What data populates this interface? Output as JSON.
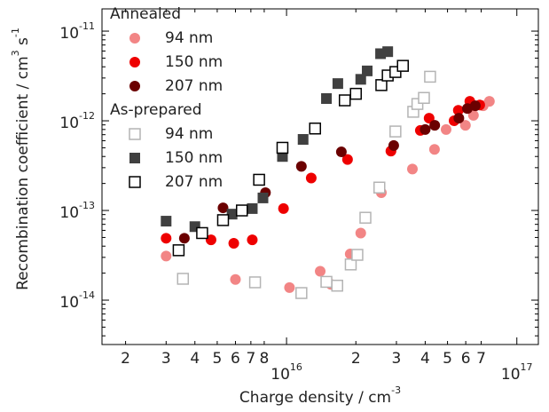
{
  "chart_data": {
    "type": "scatter",
    "xlog": true,
    "ylog": true,
    "xlim": [
      1580000000000000.0,
      1.24e+17
    ],
    "ylim": [
      3.2e-15,
      1.77e-11
    ],
    "xticks": [
      {
        "value": 2000000000000000.0,
        "label": "2"
      },
      {
        "value": 3000000000000000.0,
        "label": "3"
      },
      {
        "value": 4000000000000000.0,
        "label": "4"
      },
      {
        "value": 5000000000000000.0,
        "label": "5"
      },
      {
        "value": 6000000000000000.0,
        "label": "6"
      },
      {
        "value": 7000000000000000.0,
        "label": "7"
      },
      {
        "value": 8000000000000000.0,
        "label": "8"
      },
      {
        "value": 1e+16,
        "label": "10",
        "sup": "16"
      },
      {
        "value": 2e+16,
        "label": "2"
      },
      {
        "value": 3e+16,
        "label": "3"
      },
      {
        "value": 4e+16,
        "label": "4"
      },
      {
        "value": 5e+16,
        "label": "5"
      },
      {
        "value": 6e+16,
        "label": "6"
      },
      {
        "value": 7e+16,
        "label": "7"
      },
      {
        "value": 1e+17,
        "label": "10",
        "sup": "17"
      }
    ],
    "yticks": [
      {
        "value": 1e-14,
        "label": "10",
        "sup": "-14"
      },
      {
        "value": 1e-13,
        "label": "10",
        "sup": "-13"
      },
      {
        "value": 1e-12,
        "label": "10",
        "sup": "-12"
      },
      {
        "value": 1e-11,
        "label": "10",
        "sup": "-11"
      }
    ],
    "yminor_ticks": [
      4e-15,
      5e-15,
      6e-15,
      7e-15,
      8e-15,
      9e-15,
      2e-14,
      3e-14,
      4e-14,
      5e-14,
      6e-14,
      7e-14,
      8e-14,
      9e-14,
      2e-13,
      3e-13,
      4e-13,
      5e-13,
      6e-13,
      7e-13,
      8e-13,
      9e-13,
      2e-12,
      3e-12,
      4e-12,
      5e-12,
      6e-12,
      7e-12,
      8e-12,
      9e-12
    ],
    "xlabel": [
      {
        "text": "Charge density / cm",
        "sup": false
      },
      {
        "text": "-3",
        "sup": true
      }
    ],
    "ylabel": [
      {
        "text": "Recombination coefficient / cm",
        "sup": false
      },
      {
        "text": "3",
        "sup": true
      },
      {
        "text": " s",
        "sup": false
      },
      {
        "text": "-1",
        "sup": true
      }
    ],
    "groups": [
      {
        "name": "Annealed",
        "series": [
          {
            "name": "94 nm",
            "color": "#f28585",
            "marker": "circle",
            "filled": true,
            "x": [
              3000000000000000.0,
              6000000000000000.0,
              1.03e+16,
              1.4e+16,
              1.56e+16,
              1.89e+16,
              2.1e+16,
              2.58e+16,
              2.84e+16,
              3.52e+16,
              4.39e+16,
              4.93e+16,
              5.98e+16,
              6.48e+16,
              7.14e+16,
              7.6e+16
            ],
            "values": [
              3.1e-14,
              1.7e-14,
              1.38e-14,
              2.1e-14,
              1.5e-14,
              3.27e-14,
              5.6e-14,
              1.58e-13,
              4.6e-13,
              2.9e-13,
              4.8e-13,
              8e-13,
              8.9e-13,
              1.15e-12,
              1.47e-12,
              1.65e-12
            ]
          },
          {
            "name": "150 nm",
            "color": "#ee0000",
            "marker": "circle",
            "filled": true,
            "x": [
              3000000000000000.0,
              4700000000000000.0,
              5900000000000000.0,
              7100000000000000.0,
              9700000000000000.0,
              1.28e+16,
              1.84e+16,
              2.84e+16,
              3.81e+16,
              4.16e+16,
              5.34e+16,
              5.57e+16,
              6.25e+16,
              6.9e+16
            ],
            "values": [
              4.9e-14,
              4.7e-14,
              4.3e-14,
              4.7e-14,
              1.05e-13,
              2.3e-13,
              3.7e-13,
              4.6e-13,
              7.8e-13,
              1.07e-12,
              1e-12,
              1.31e-12,
              1.65e-12,
              1.5e-12
            ]
          },
          {
            "name": "207 nm",
            "color": "#6b0000",
            "marker": "circle",
            "filled": true,
            "x": [
              3600000000000000.0,
              5300000000000000.0,
              8100000000000000.0,
              1.16e+16,
              1.73e+16,
              2.92e+16,
              4e+16,
              4.4e+16,
              5.6e+16,
              6.1e+16,
              6.6e+16
            ],
            "values": [
              4.9e-14,
              1.07e-13,
              1.58e-13,
              3.1e-13,
              4.5e-13,
              5.3e-13,
              8e-13,
              8.9e-13,
              1.07e-12,
              1.37e-12,
              1.47e-12
            ]
          }
        ]
      },
      {
        "name": "As-prepared",
        "series": [
          {
            "name": "94 nm",
            "color": "#b4b4b4",
            "marker": "square",
            "filled": false,
            "x": [
              3550000000000000.0,
              7300000000000000.0,
              1.16e+16,
              1.49e+16,
              1.66e+16,
              1.9e+16,
              2.03e+16,
              2.2e+16,
              2.53e+16,
              2.97e+16,
              3.55e+16,
              3.7e+16,
              3.95e+16,
              4.2e+16
            ],
            "values": [
              1.73e-14,
              1.58e-14,
              1.2e-14,
              1.6e-14,
              1.45e-14,
              2.5e-14,
              3.2e-14,
              8.3e-14,
              1.8e-13,
              7.6e-13,
              1.26e-12,
              1.54e-12,
              1.8e-12,
              3.1e-12
            ]
          },
          {
            "name": "150 nm",
            "color": "#404040",
            "marker": "square",
            "filled": true,
            "x": [
              3000000000000000.0,
              4000000000000000.0,
              5800000000000000.0,
              7100000000000000.0,
              7900000000000000.0,
              9600000000000000.0,
              1.18e+16,
              1.49e+16,
              1.67e+16,
              2.1e+16,
              2.24e+16,
              2.56e+16,
              2.75e+16
            ],
            "values": [
              7.6e-14,
              6.6e-14,
              9.1e-14,
              1.05e-13,
              1.38e-13,
              4e-13,
              6.2e-13,
              1.77e-12,
              2.6e-12,
              2.9e-12,
              3.6e-12,
              5.6e-12,
              5.9e-12
            ]
          },
          {
            "name": "207 nm",
            "color": "#000000",
            "marker": "square",
            "filled": false,
            "x": [
              3400000000000000.0,
              4300000000000000.0,
              5300000000000000.0,
              6400000000000000.0,
              7600000000000000.0,
              9600000000000000.0,
              1.33e+16,
              1.79e+16,
              2e+16,
              2.58e+16,
              2.75e+16,
              2.97e+16,
              3.2e+16
            ],
            "values": [
              3.6e-14,
              5.6e-14,
              7.8e-14,
              1e-13,
              2.2e-13,
              5e-13,
              8.2e-13,
              1.69e-12,
              2e-12,
              2.5e-12,
              3.2e-12,
              3.5e-12,
              4.1e-12
            ]
          }
        ]
      }
    ]
  }
}
